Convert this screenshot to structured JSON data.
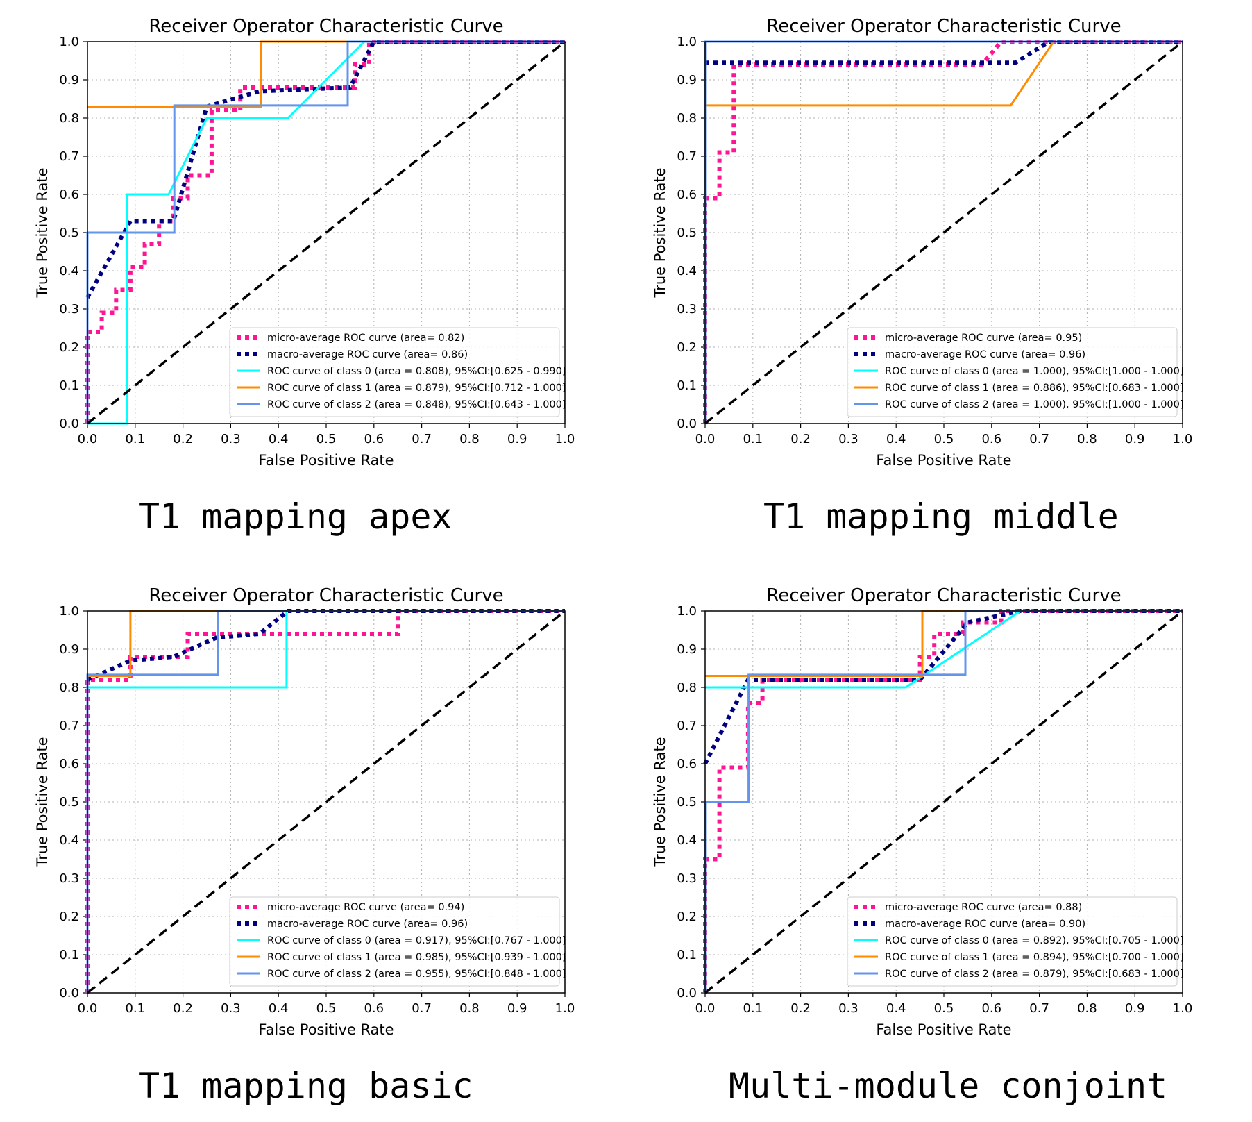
{
  "colors": {
    "micro": "#ff1493",
    "macro": "#000080",
    "class0": "#00ffff",
    "class1": "#ff8c00",
    "class2": "#6495ed",
    "chance": "#000000",
    "grid": "#b0b0b0"
  },
  "chart_data": [
    {
      "type": "line",
      "title": "Receiver Operator Characteristic Curve",
      "caption": "T1 mapping apex",
      "xlabel": "False Positive Rate",
      "ylabel": "True Positive Rate",
      "xlim": [
        0,
        1
      ],
      "ylim": [
        0,
        1
      ],
      "xticks": [
        "0.0",
        "0.1",
        "0.2",
        "0.3",
        "0.4",
        "0.5",
        "0.6",
        "0.7",
        "0.8",
        "0.9",
        "1.0"
      ],
      "yticks": [
        "0.0",
        "0.1",
        "0.2",
        "0.3",
        "0.4",
        "0.5",
        "0.6",
        "0.7",
        "0.8",
        "0.9",
        "1.0"
      ],
      "grid": true,
      "legend_position": "lower-right",
      "series": [
        {
          "name": "micro-average ROC curve (area= 0.82)",
          "kind": "micro",
          "x": [
            0,
            0,
            0.03,
            0.03,
            0.06,
            0.06,
            0.09,
            0.09,
            0.12,
            0.12,
            0.15,
            0.15,
            0.18,
            0.18,
            0.21,
            0.21,
            0.26,
            0.26,
            0.32,
            0.32,
            0.56,
            0.56,
            0.59,
            0.59,
            1.0
          ],
          "y": [
            0,
            0.24,
            0.24,
            0.29,
            0.29,
            0.35,
            0.35,
            0.41,
            0.41,
            0.47,
            0.47,
            0.53,
            0.53,
            0.59,
            0.59,
            0.65,
            0.65,
            0.82,
            0.82,
            0.88,
            0.88,
            0.94,
            0.94,
            1.0,
            1.0
          ]
        },
        {
          "name": "macro-average ROC curve (area= 0.86)",
          "kind": "macro",
          "x": [
            0,
            0.09,
            0.18,
            0.25,
            0.36,
            0.55,
            0.6,
            1.0
          ],
          "y": [
            0.33,
            0.53,
            0.53,
            0.83,
            0.87,
            0.88,
            1.0,
            1.0
          ]
        },
        {
          "name": "ROC curve of class 0 (area = 0.808), 95%CI:[0.625 - 0.990]",
          "kind": "class0",
          "x": [
            0,
            0.083,
            0.083,
            0.17,
            0.25,
            0.42,
            0.58,
            1.0
          ],
          "y": [
            0,
            0,
            0.6,
            0.6,
            0.8,
            0.8,
            1.0,
            1.0
          ]
        },
        {
          "name": "ROC curve of class 1 (area = 0.879), 95%CI:[0.712 - 1.000]",
          "kind": "class1",
          "x": [
            0,
            0.364,
            0.364,
            1.0
          ],
          "y": [
            0.83,
            0.83,
            1.0,
            1.0
          ]
        },
        {
          "name": "ROC curve of class 2 (area = 0.848), 95%CI:[0.643 - 1.000]",
          "kind": "class2",
          "x": [
            0,
            0,
            0.182,
            0.182,
            0.545,
            0.545,
            1.0
          ],
          "y": [
            0,
            0.5,
            0.5,
            0.833,
            0.833,
            1.0,
            1.0
          ]
        }
      ]
    },
    {
      "type": "line",
      "title": "Receiver Operator Characteristic Curve",
      "caption": "T1 mapping middle",
      "xlabel": "False Positive Rate",
      "ylabel": "True Positive Rate",
      "xlim": [
        0,
        1
      ],
      "ylim": [
        0,
        1
      ],
      "xticks": [
        "0.0",
        "0.1",
        "0.2",
        "0.3",
        "0.4",
        "0.5",
        "0.6",
        "0.7",
        "0.8",
        "0.9",
        "1.0"
      ],
      "yticks": [
        "0.0",
        "0.1",
        "0.2",
        "0.3",
        "0.4",
        "0.5",
        "0.6",
        "0.7",
        "0.8",
        "0.9",
        "1.0"
      ],
      "grid": true,
      "legend_position": "lower-right",
      "series": [
        {
          "name": "micro-average ROC curve (area= 0.95)",
          "kind": "micro",
          "x": [
            0,
            0,
            0.03,
            0.03,
            0.06,
            0.06,
            0.58,
            0.62,
            1.0
          ],
          "y": [
            0,
            0.59,
            0.59,
            0.71,
            0.71,
            0.94,
            0.94,
            1.0,
            1.0
          ]
        },
        {
          "name": "macro-average ROC curve (area= 0.96)",
          "kind": "macro",
          "x": [
            0,
            0.65,
            0.72,
            1.0
          ],
          "y": [
            0.945,
            0.945,
            1.0,
            1.0
          ]
        },
        {
          "name": "ROC curve of class 0 (area = 1.000), 95%CI:[1.000 - 1.000]",
          "kind": "class0",
          "x": [
            0,
            0,
            1.0
          ],
          "y": [
            0,
            1.0,
            1.0
          ]
        },
        {
          "name": "ROC curve of class 1 (area = 0.886), 95%CI:[0.683 - 1.000]",
          "kind": "class1",
          "x": [
            0,
            0,
            0.64,
            0.73,
            1.0
          ],
          "y": [
            0,
            0.833,
            0.833,
            1.0,
            1.0
          ]
        },
        {
          "name": "ROC curve of class 2 (area = 1.000), 95%CI:[1.000 - 1.000]",
          "kind": "class2",
          "x": [
            0,
            0,
            1.0
          ],
          "y": [
            0,
            1.0,
            1.0
          ]
        }
      ]
    },
    {
      "type": "line",
      "title": "Receiver Operator Characteristic Curve",
      "caption": "T1 mapping basic",
      "xlabel": "False Positive Rate",
      "ylabel": "True Positive Rate",
      "xlim": [
        0,
        1
      ],
      "ylim": [
        0,
        1
      ],
      "xticks": [
        "0.0",
        "0.1",
        "0.2",
        "0.3",
        "0.4",
        "0.5",
        "0.6",
        "0.7",
        "0.8",
        "0.9",
        "1.0"
      ],
      "yticks": [
        "0.0",
        "0.1",
        "0.2",
        "0.3",
        "0.4",
        "0.5",
        "0.6",
        "0.7",
        "0.8",
        "0.9",
        "1.0"
      ],
      "grid": true,
      "legend_position": "lower-right",
      "series": [
        {
          "name": "micro-average ROC curve (area= 0.94)",
          "kind": "micro",
          "x": [
            0,
            0,
            0.09,
            0.09,
            0.21,
            0.21,
            0.65,
            0.65,
            1.0
          ],
          "y": [
            0,
            0.82,
            0.82,
            0.88,
            0.88,
            0.94,
            0.94,
            1.0,
            1.0
          ]
        },
        {
          "name": "macro-average ROC curve (area= 0.96)",
          "kind": "macro",
          "x": [
            0,
            0.09,
            0.18,
            0.27,
            0.36,
            0.42,
            1.0
          ],
          "y": [
            0.82,
            0.87,
            0.88,
            0.93,
            0.94,
            1.0,
            1.0
          ]
        },
        {
          "name": "ROC curve of class 0 (area = 0.917), 95%CI:[0.767 - 1.000]",
          "kind": "class0",
          "x": [
            0,
            0,
            0.417,
            0.417,
            1.0
          ],
          "y": [
            0,
            0.8,
            0.8,
            1.0,
            1.0
          ]
        },
        {
          "name": "ROC curve of class 1 (area = 0.985), 95%CI:[0.939 - 1.000]",
          "kind": "class1",
          "x": [
            0,
            0.09,
            0.09,
            0.27,
            1.0
          ],
          "y": [
            0.83,
            0.83,
            1.0,
            1.0,
            1.0
          ]
        },
        {
          "name": "ROC curve of class 2 (area = 0.955), 95%CI:[0.848 - 1.000]",
          "kind": "class2",
          "x": [
            0,
            0,
            0.273,
            0.273,
            1.0
          ],
          "y": [
            0,
            0.833,
            0.833,
            1.0,
            1.0
          ]
        }
      ]
    },
    {
      "type": "line",
      "title": "Receiver Operator Characteristic Curve",
      "caption": "Multi-module conjoint",
      "xlabel": "False Positive Rate",
      "ylabel": "True Positive Rate",
      "xlim": [
        0,
        1
      ],
      "ylim": [
        0,
        1
      ],
      "xticks": [
        "0.0",
        "0.1",
        "0.2",
        "0.3",
        "0.4",
        "0.5",
        "0.6",
        "0.7",
        "0.8",
        "0.9",
        "1.0"
      ],
      "yticks": [
        "0.0",
        "0.1",
        "0.2",
        "0.3",
        "0.4",
        "0.5",
        "0.6",
        "0.7",
        "0.8",
        "0.9",
        "1.0"
      ],
      "grid": true,
      "legend_position": "lower-right",
      "series": [
        {
          "name": "micro-average ROC curve (area= 0.88)",
          "kind": "micro",
          "x": [
            0,
            0,
            0.03,
            0.03,
            0.09,
            0.09,
            0.12,
            0.12,
            0.45,
            0.45,
            0.48,
            0.48,
            0.54,
            0.54,
            0.62,
            0.62,
            1.0
          ],
          "y": [
            0,
            0.35,
            0.35,
            0.59,
            0.59,
            0.76,
            0.76,
            0.82,
            0.82,
            0.88,
            0.88,
            0.94,
            0.94,
            0.97,
            0.97,
            1.0,
            1.0
          ]
        },
        {
          "name": "macro-average ROC curve (area= 0.90)",
          "kind": "macro",
          "x": [
            0,
            0.09,
            0.45,
            0.55,
            0.66,
            1.0
          ],
          "y": [
            0.6,
            0.82,
            0.82,
            0.97,
            1.0,
            1.0
          ]
        },
        {
          "name": "ROC curve of class 0 (area = 0.892), 95%CI:[0.705 - 1.000]",
          "kind": "class0",
          "x": [
            0,
            0.42,
            0.66,
            1.0
          ],
          "y": [
            0.8,
            0.8,
            1.0,
            1.0
          ]
        },
        {
          "name": "ROC curve of class 1 (area = 0.894), 95%CI:[0.700 - 1.000]",
          "kind": "class1",
          "x": [
            0,
            0.455,
            0.455,
            0.545,
            1.0
          ],
          "y": [
            0.83,
            0.83,
            1.0,
            1.0,
            1.0
          ]
        },
        {
          "name": "ROC curve of class 2 (area = 0.879), 95%CI:[0.683 - 1.000]",
          "kind": "class2",
          "x": [
            0,
            0,
            0.091,
            0.091,
            0.545,
            0.545,
            1.0
          ],
          "y": [
            0,
            0.5,
            0.5,
            0.833,
            0.833,
            1.0,
            1.0
          ]
        }
      ]
    }
  ]
}
